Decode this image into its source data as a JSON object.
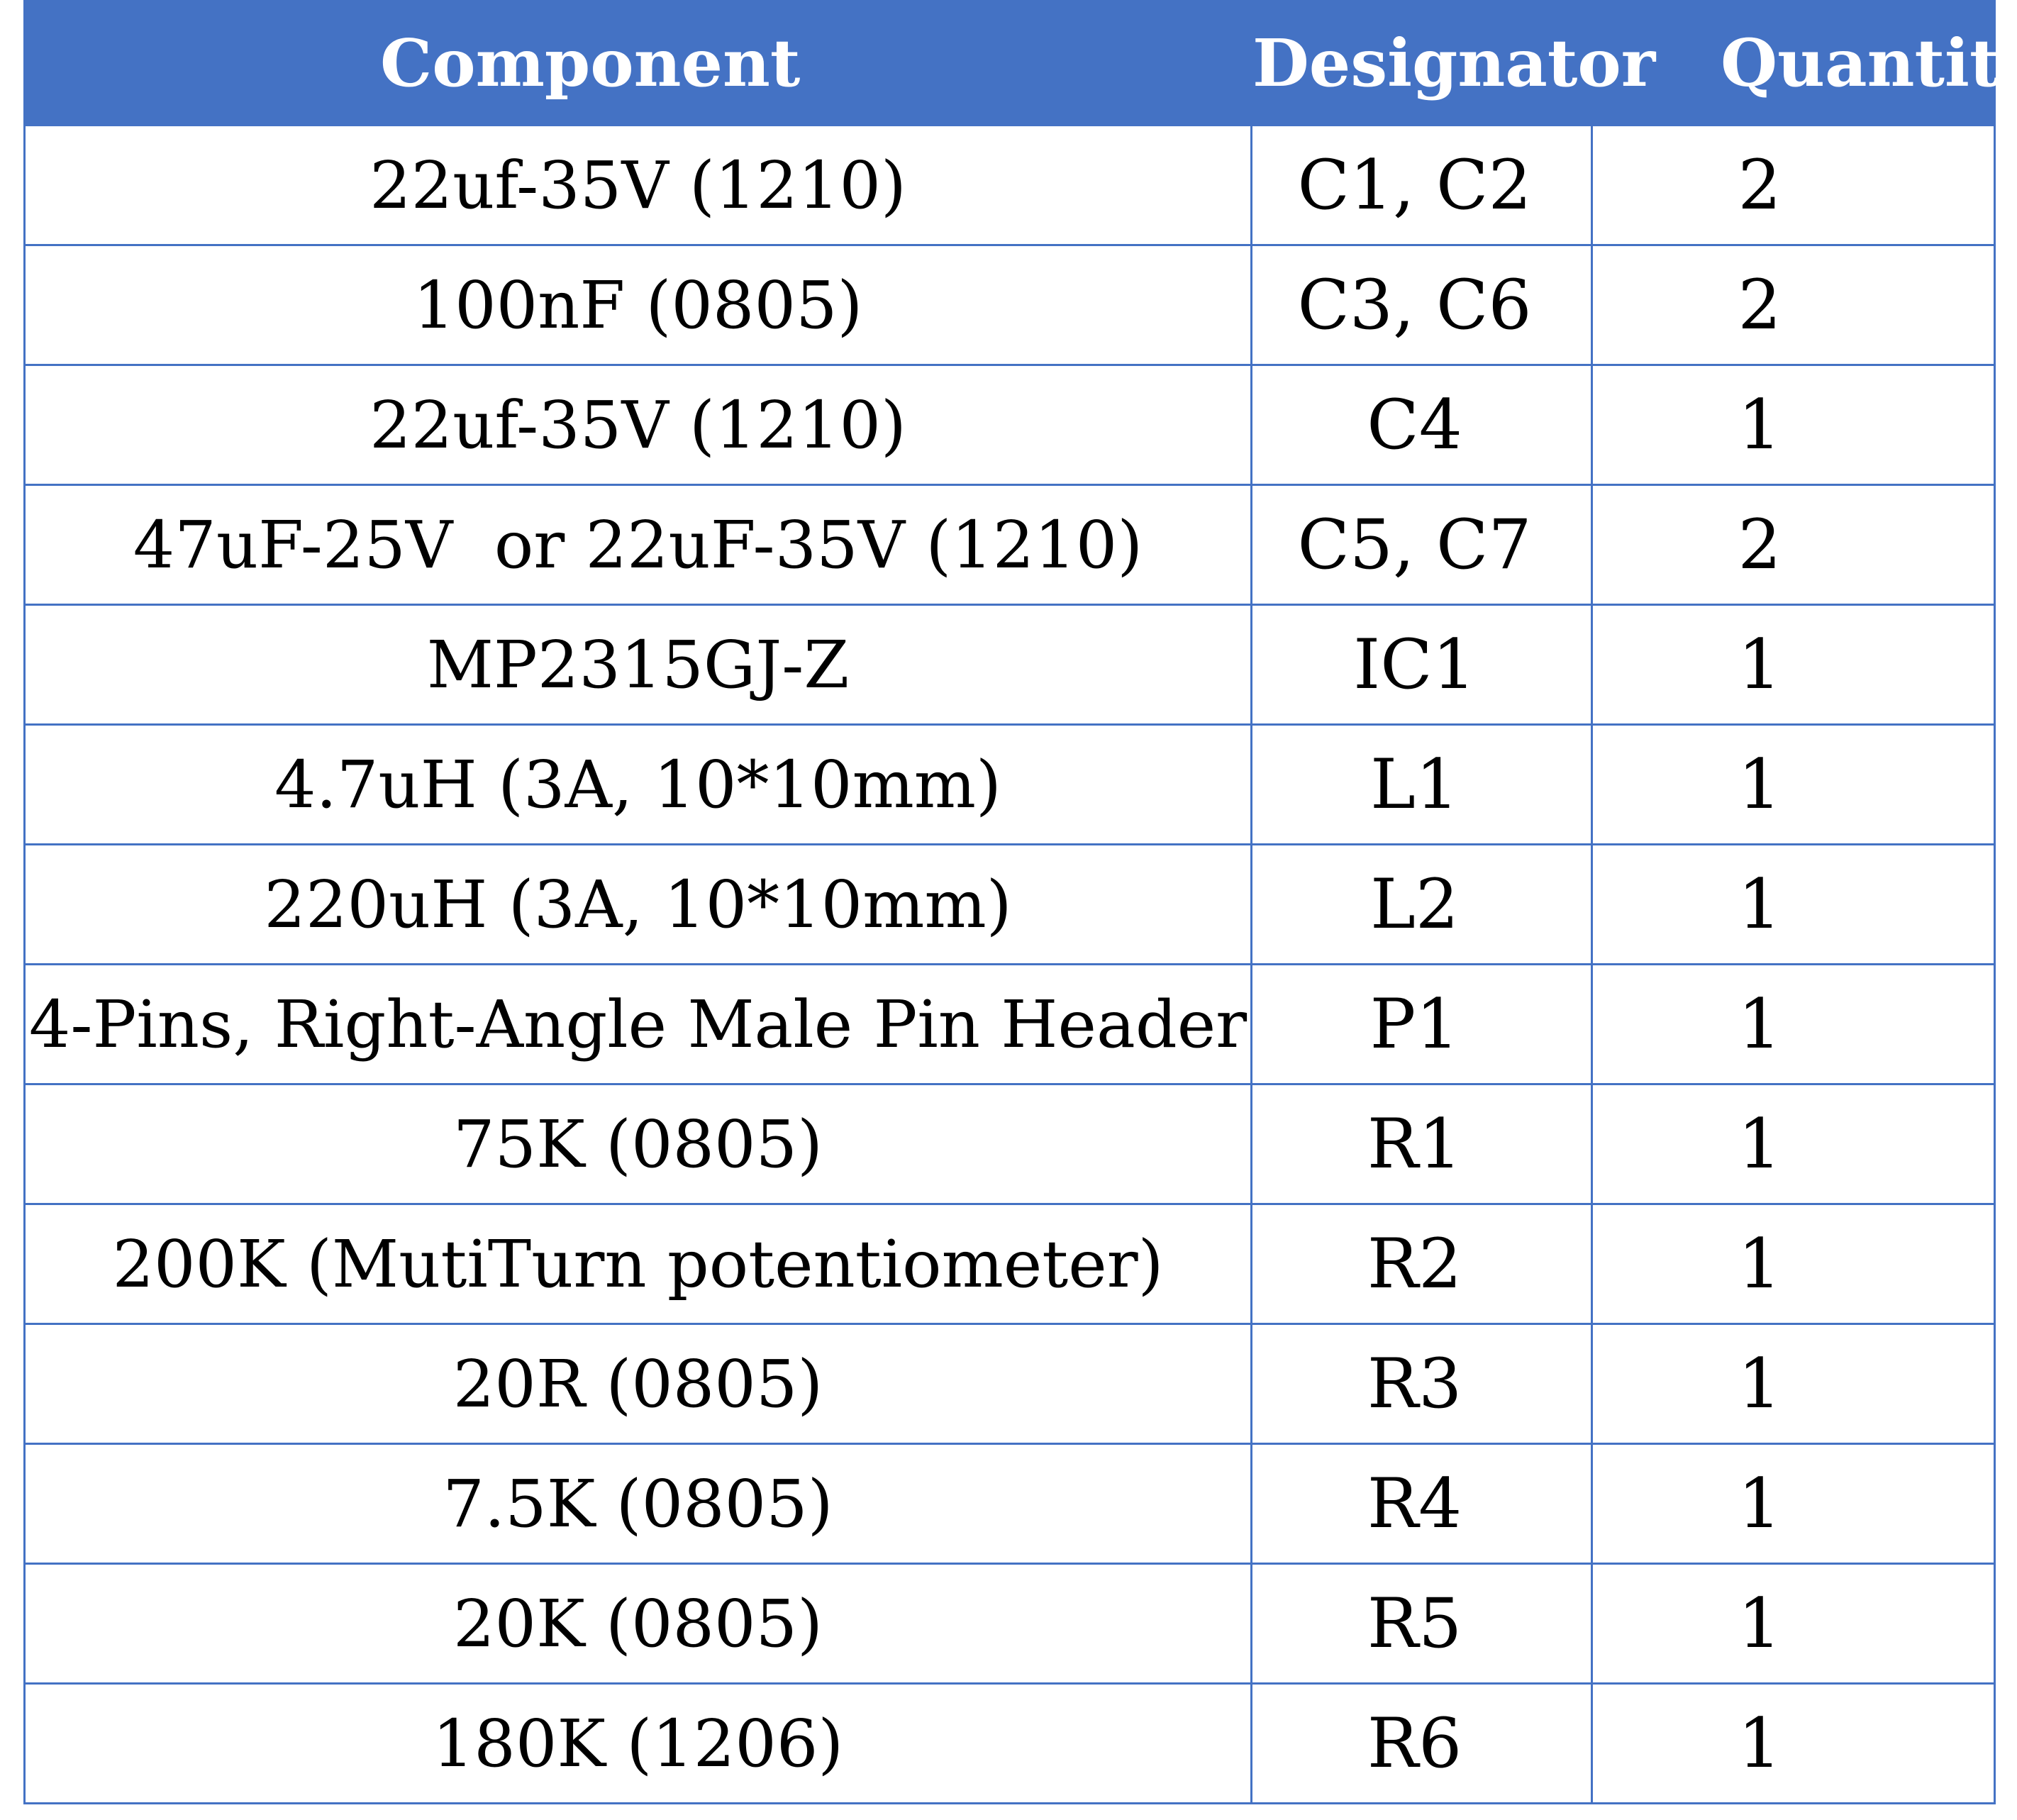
{
  "table": {
    "headers": [
      "Component",
      "Designator",
      "Quantity"
    ],
    "rows": [
      [
        "22uf-35V (1210)",
        "C1, C2",
        "2"
      ],
      [
        "100nF (0805)",
        "C3, C6",
        "2"
      ],
      [
        "22uf-35V (1210)",
        "C4",
        "1"
      ],
      [
        "47uF-25V  or 22uF-35V (1210)",
        "C5, C7",
        "2"
      ],
      [
        "MP2315GJ-Z",
        "IC1",
        "1"
      ],
      [
        "4.7uH (3A, 10*10mm)",
        "L1",
        "1"
      ],
      [
        "220uH (3A, 10*10mm)",
        "L2",
        "1"
      ],
      [
        "4-Pins, Right-Angle Male Pin Header",
        "P1",
        "1"
      ],
      [
        "75K (0805)",
        "R1",
        "1"
      ],
      [
        "200K (MutiTurn potentiometer)",
        "R2",
        "1"
      ],
      [
        "20R (0805)",
        "R3",
        "1"
      ],
      [
        "7.5K (0805)",
        "R4",
        "1"
      ],
      [
        "20K (0805)",
        "R5",
        "1"
      ],
      [
        "180K (1206)",
        "R6",
        "1"
      ]
    ]
  },
  "colors": {
    "header_background": "#4472c4",
    "header_text": "#ffffff",
    "border": "#4472c4",
    "body_text": "#000000"
  }
}
